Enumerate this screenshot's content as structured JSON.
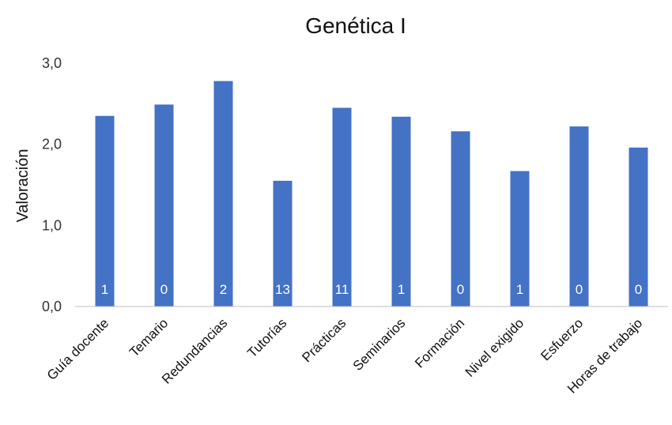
{
  "chart_data": {
    "type": "bar",
    "title": "Genética I",
    "xlabel": "",
    "ylabel": "Valoración",
    "ylim": [
      0,
      3
    ],
    "yticks": [
      "0,0",
      "1,0",
      "2,0",
      "3,0"
    ],
    "grid": false,
    "categories": [
      "Guía docente",
      "Temario",
      "Redundancias",
      "Tutorías",
      "Prácticas",
      "Seminarios",
      "Formación",
      "Nivel exigido",
      "Esfuerzo",
      "Horas de trabajo"
    ],
    "values": [
      2.35,
      2.49,
      2.78,
      1.55,
      2.45,
      2.34,
      2.16,
      1.67,
      2.22,
      1.96
    ],
    "data_labels": [
      "1",
      "0",
      "2",
      "13",
      "11",
      "1",
      "0",
      "1",
      "0",
      "0"
    ],
    "bar_color": "#4472C4"
  }
}
